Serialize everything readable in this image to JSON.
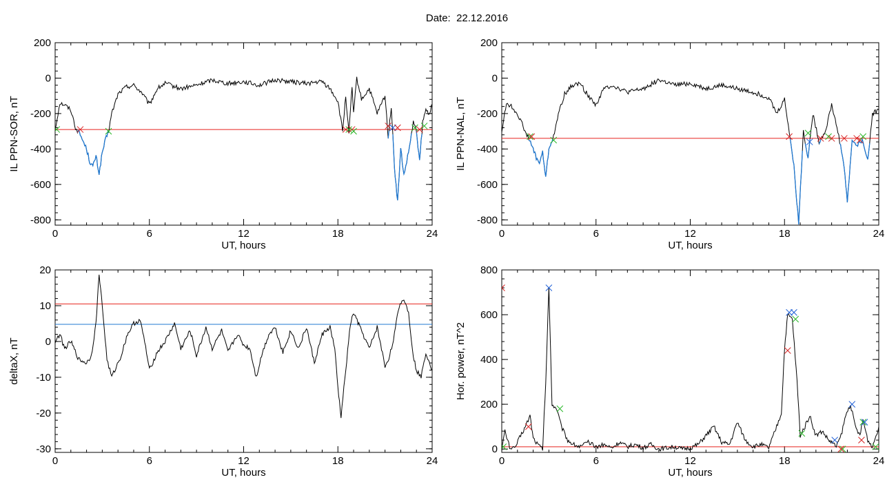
{
  "header": {
    "date_label": "Date:",
    "date_value": "22.12.2016"
  },
  "colors": {
    "trace": "#000000",
    "threshold": "#e8221c",
    "highlight": "#1f78d1",
    "marker_red": "#d62020",
    "marker_green": "#28b828",
    "marker_blue": "#1f5fd6"
  },
  "chart_data": [
    {
      "id": "ppn-sor",
      "type": "line",
      "xlabel": "UT, hours",
      "ylabel": "IL PPN-SOR, nT",
      "xlim": [
        0,
        24
      ],
      "ylim": [
        -830,
        200
      ],
      "xticks": [
        0,
        6,
        12,
        18,
        24
      ],
      "yticks": [
        -800,
        -600,
        -400,
        -200,
        0,
        200
      ],
      "threshold": -290,
      "series": [
        {
          "x": [
            0,
            0.3,
            0.6,
            1.0,
            1.3,
            1.6,
            2.0,
            2.2,
            2.4,
            2.6,
            2.8,
            3.0,
            3.2,
            3.4,
            3.6,
            4.0,
            4.5,
            5.0,
            5.5,
            6.0,
            6.5,
            7.0,
            8.0,
            9.0,
            10.0,
            11.0,
            12.0,
            13.0,
            14.0,
            15.0,
            16.0,
            17.0,
            17.5,
            18.0,
            18.3,
            18.5,
            18.7,
            18.9,
            19.0,
            19.2,
            19.5,
            20.0,
            20.5,
            21.0,
            21.2,
            21.4,
            21.6,
            21.8,
            22.0,
            22.2,
            22.5,
            22.8,
            23.0,
            23.2,
            23.4,
            23.6,
            23.8,
            24.0
          ],
          "y": [
            -290,
            -140,
            -150,
            -180,
            -280,
            -320,
            -400,
            -470,
            -500,
            -440,
            -540,
            -420,
            -350,
            -300,
            -200,
            -90,
            -50,
            -40,
            -80,
            -150,
            -60,
            -30,
            -60,
            -40,
            -10,
            -30,
            -20,
            -40,
            -10,
            -20,
            -30,
            -20,
            -60,
            -130,
            -300,
            -100,
            -320,
            -50,
            -200,
            0,
            -120,
            -60,
            -200,
            -100,
            -330,
            -160,
            -500,
            -700,
            -400,
            -550,
            -420,
            -250,
            -300,
            -470,
            -250,
            -180,
            -200,
            -150
          ]
        }
      ],
      "markers": [
        {
          "x": 0.1,
          "y": -290,
          "color": "green"
        },
        {
          "x": 1.6,
          "y": -290,
          "color": "red"
        },
        {
          "x": 3.4,
          "y": -300,
          "color": "green"
        },
        {
          "x": 18.5,
          "y": -290,
          "color": "red"
        },
        {
          "x": 18.7,
          "y": -290,
          "color": "green"
        },
        {
          "x": 18.9,
          "y": -290,
          "color": "red"
        },
        {
          "x": 19.0,
          "y": -300,
          "color": "green"
        },
        {
          "x": 21.2,
          "y": -270,
          "color": "red"
        },
        {
          "x": 21.5,
          "y": -280,
          "color": "blue"
        },
        {
          "x": 21.8,
          "y": -280,
          "color": "red"
        },
        {
          "x": 22.9,
          "y": -280,
          "color": "green"
        },
        {
          "x": 23.2,
          "y": -290,
          "color": "red"
        },
        {
          "x": 23.5,
          "y": -270,
          "color": "green"
        }
      ]
    },
    {
      "id": "ppn-nal",
      "type": "line",
      "xlabel": "UT, hours",
      "ylabel": "IL PPN-NAL, nT",
      "xlim": [
        0,
        24
      ],
      "ylim": [
        -830,
        200
      ],
      "xticks": [
        0,
        6,
        12,
        18,
        24
      ],
      "yticks": [
        -800,
        -600,
        -400,
        -200,
        0,
        200
      ],
      "threshold": -340,
      "series": [
        {
          "x": [
            0,
            0.3,
            0.6,
            1.0,
            1.3,
            1.6,
            2.0,
            2.2,
            2.4,
            2.6,
            2.8,
            3.0,
            3.2,
            3.4,
            3.6,
            4.0,
            4.5,
            5.0,
            5.5,
            6.0,
            6.5,
            7.0,
            8.0,
            9.0,
            10.0,
            11.0,
            12.0,
            13.0,
            14.0,
            15.0,
            16.0,
            17.0,
            17.5,
            18.0,
            18.3,
            18.6,
            18.9,
            19.2,
            19.5,
            19.8,
            20.2,
            20.6,
            21.0,
            21.4,
            21.8,
            22.0,
            22.3,
            22.6,
            23.0,
            23.3,
            23.6,
            24.0
          ],
          "y": [
            -300,
            -140,
            -160,
            -200,
            -260,
            -320,
            -400,
            -450,
            -480,
            -420,
            -560,
            -400,
            -350,
            -300,
            -200,
            -90,
            -40,
            -30,
            -100,
            -150,
            -60,
            -40,
            -80,
            -60,
            -10,
            -40,
            -30,
            -60,
            -40,
            -60,
            -80,
            -110,
            -200,
            -120,
            -300,
            -500,
            -820,
            -300,
            -450,
            -200,
            -360,
            -300,
            -150,
            -300,
            -500,
            -700,
            -350,
            -380,
            -350,
            -470,
            -200,
            -180
          ]
        }
      ],
      "markers": [
        {
          "x": 1.8,
          "y": -330,
          "color": "green"
        },
        {
          "x": 1.9,
          "y": -330,
          "color": "red"
        },
        {
          "x": 3.3,
          "y": -350,
          "color": "green"
        },
        {
          "x": 18.3,
          "y": -330,
          "color": "red"
        },
        {
          "x": 19.5,
          "y": -310,
          "color": "green"
        },
        {
          "x": 19.6,
          "y": -360,
          "color": "blue"
        },
        {
          "x": 20.3,
          "y": -340,
          "color": "red"
        },
        {
          "x": 20.8,
          "y": -330,
          "color": "green"
        },
        {
          "x": 21.0,
          "y": -340,
          "color": "red"
        },
        {
          "x": 21.8,
          "y": -340,
          "color": "red"
        },
        {
          "x": 22.6,
          "y": -340,
          "color": "red"
        },
        {
          "x": 22.8,
          "y": -350,
          "color": "red"
        },
        {
          "x": 23.0,
          "y": -330,
          "color": "green"
        }
      ]
    },
    {
      "id": "deltax",
      "type": "line",
      "xlabel": "UT, hours",
      "ylabel": "deltaX, nT",
      "xlim": [
        0,
        24
      ],
      "ylim": [
        -31,
        20
      ],
      "xticks": [
        0,
        6,
        12,
        18,
        24
      ],
      "yticks": [
        -30,
        -20,
        -10,
        0,
        10,
        20
      ],
      "threshold": 10.5,
      "threshold2": 4.8,
      "series": [
        {
          "x": [
            0,
            0.3,
            0.6,
            1.0,
            1.5,
            2.0,
            2.3,
            2.6,
            2.8,
            3.0,
            3.3,
            3.6,
            3.9,
            4.2,
            4.6,
            5.0,
            5.4,
            5.7,
            6.0,
            6.5,
            7.0,
            7.6,
            8.0,
            8.6,
            9.0,
            9.6,
            10.0,
            10.6,
            11.0,
            11.6,
            12.0,
            12.4,
            12.8,
            13.2,
            13.6,
            14.0,
            14.5,
            15.0,
            15.5,
            16.0,
            16.5,
            17.0,
            17.5,
            17.8,
            18.0,
            18.2,
            18.5,
            18.8,
            19.0,
            19.5,
            20.0,
            20.5,
            21.0,
            21.3,
            21.6,
            21.9,
            22.2,
            22.5,
            22.8,
            23.0,
            23.3,
            23.6,
            24.0
          ],
          "y": [
            0,
            2,
            -2,
            0,
            -5,
            -6,
            -4,
            5,
            19,
            10,
            -5,
            -10,
            -7,
            -4,
            2,
            5,
            6,
            0,
            -8,
            -3,
            0,
            5,
            -2,
            3,
            -4,
            4,
            -2,
            3,
            -3,
            2,
            -1,
            -2,
            -10,
            -3,
            2,
            4,
            -3,
            3,
            -2,
            4,
            -6,
            2,
            4,
            -2,
            -13,
            -21,
            -8,
            5,
            8,
            3,
            -2,
            4,
            -7,
            -4,
            2,
            10,
            12,
            8,
            -4,
            -8,
            -10,
            -3,
            -8
          ]
        }
      ],
      "markers": []
    },
    {
      "id": "hor-power",
      "type": "line",
      "xlabel": "UT, hours",
      "ylabel": "Hor. power, nT^2",
      "xlim": [
        0,
        24
      ],
      "ylim": [
        -15,
        800
      ],
      "xticks": [
        0,
        6,
        12,
        18,
        24
      ],
      "yticks": [
        0,
        200,
        400,
        600,
        800
      ],
      "threshold": 10,
      "series": [
        {
          "x": [
            0,
            0.2,
            0.5,
            0.8,
            1.2,
            1.5,
            1.8,
            2.0,
            2.3,
            2.6,
            2.8,
            3.0,
            3.2,
            3.5,
            3.8,
            4.2,
            4.6,
            5.0,
            5.5,
            6.0,
            6.5,
            7.0,
            7.5,
            8.0,
            8.5,
            9.0,
            9.5,
            10.0,
            10.5,
            11.0,
            11.5,
            12.0,
            12.5,
            13.0,
            13.5,
            14.0,
            14.5,
            15.0,
            15.5,
            16.0,
            16.5,
            17.0,
            17.5,
            17.8,
            18.0,
            18.2,
            18.5,
            18.8,
            19.0,
            19.3,
            19.6,
            20.0,
            20.4,
            20.8,
            21.0,
            21.3,
            21.6,
            21.9,
            22.2,
            22.5,
            22.8,
            23.0,
            23.3,
            23.6,
            24.0
          ],
          "y": [
            0,
            80,
            10,
            0,
            60,
            100,
            150,
            50,
            20,
            0,
            300,
            720,
            200,
            180,
            100,
            40,
            20,
            10,
            30,
            10,
            20,
            5,
            30,
            10,
            20,
            5,
            20,
            0,
            5,
            10,
            0,
            5,
            20,
            60,
            100,
            30,
            20,
            120,
            40,
            10,
            20,
            5,
            100,
            160,
            450,
            600,
            580,
            300,
            60,
            100,
            150,
            60,
            80,
            40,
            30,
            10,
            60,
            150,
            200,
            100,
            60,
            130,
            40,
            10,
            100
          ]
        }
      ],
      "markers": [
        {
          "x": 0.0,
          "y": 720,
          "color": "red"
        },
        {
          "x": 0.1,
          "y": 10,
          "color": "green"
        },
        {
          "x": 1.7,
          "y": 100,
          "color": "red"
        },
        {
          "x": 3.0,
          "y": 720,
          "color": "blue"
        },
        {
          "x": 3.7,
          "y": 180,
          "color": "green"
        },
        {
          "x": 18.2,
          "y": 440,
          "color": "red"
        },
        {
          "x": 18.3,
          "y": 610,
          "color": "blue"
        },
        {
          "x": 18.6,
          "y": 610,
          "color": "blue"
        },
        {
          "x": 18.7,
          "y": 580,
          "color": "green"
        },
        {
          "x": 19.1,
          "y": 70,
          "color": "green"
        },
        {
          "x": 21.2,
          "y": 40,
          "color": "blue"
        },
        {
          "x": 21.7,
          "y": 0,
          "color": "green"
        },
        {
          "x": 21.6,
          "y": 0,
          "color": "red"
        },
        {
          "x": 22.3,
          "y": 200,
          "color": "blue"
        },
        {
          "x": 22.9,
          "y": 40,
          "color": "red"
        },
        {
          "x": 23.0,
          "y": 120,
          "color": "green"
        },
        {
          "x": 23.1,
          "y": 120,
          "color": "blue"
        },
        {
          "x": 23.8,
          "y": 10,
          "color": "green"
        }
      ]
    }
  ]
}
